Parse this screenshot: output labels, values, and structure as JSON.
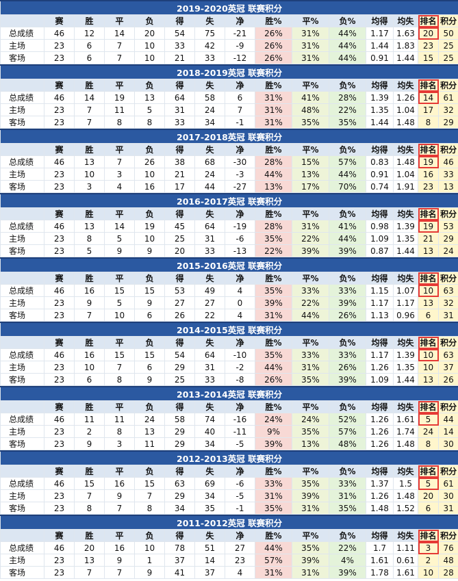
{
  "columns": [
    "",
    "赛",
    "胜",
    "平",
    "负",
    "得",
    "失",
    "净",
    "胜%",
    "平%",
    "负%",
    "均得",
    "均失",
    "排名",
    "积分"
  ],
  "seasons": [
    {
      "title": "2019-2020英冠 联赛积分",
      "rows": [
        {
          "label": "总成绩",
          "values": [
            "46",
            "12",
            "14",
            "20",
            "54",
            "75",
            "-21",
            "26%",
            "31%",
            "44%",
            "1.17",
            "1.63",
            "20",
            "50"
          ]
        },
        {
          "label": "主场",
          "values": [
            "23",
            "6",
            "7",
            "10",
            "33",
            "42",
            "-9",
            "26%",
            "31%",
            "44%",
            "1.44",
            "1.83",
            "23",
            "25"
          ]
        },
        {
          "label": "客场",
          "values": [
            "23",
            "6",
            "7",
            "10",
            "21",
            "33",
            "-12",
            "26%",
            "31%",
            "44%",
            "0.91",
            "1.44",
            "15",
            "25"
          ]
        }
      ]
    },
    {
      "title": "2018-2019英冠 联赛积分",
      "rows": [
        {
          "label": "总成绩",
          "values": [
            "46",
            "14",
            "19",
            "13",
            "64",
            "58",
            "6",
            "31%",
            "41%",
            "28%",
            "1.39",
            "1.26",
            "14",
            "61"
          ]
        },
        {
          "label": "主场",
          "values": [
            "23",
            "7",
            "11",
            "5",
            "31",
            "24",
            "7",
            "31%",
            "48%",
            "22%",
            "1.35",
            "1.04",
            "17",
            "32"
          ]
        },
        {
          "label": "客场",
          "values": [
            "23",
            "7",
            "8",
            "8",
            "33",
            "34",
            "-1",
            "31%",
            "35%",
            "35%",
            "1.44",
            "1.48",
            "8",
            "29"
          ]
        }
      ]
    },
    {
      "title": "2017-2018英冠 联赛积分",
      "rows": [
        {
          "label": "总成绩",
          "values": [
            "46",
            "13",
            "7",
            "26",
            "38",
            "68",
            "-30",
            "28%",
            "15%",
            "57%",
            "0.83",
            "1.48",
            "19",
            "46"
          ]
        },
        {
          "label": "主场",
          "values": [
            "23",
            "10",
            "3",
            "10",
            "21",
            "24",
            "-3",
            "44%",
            "13%",
            "44%",
            "0.91",
            "1.04",
            "16",
            "33"
          ]
        },
        {
          "label": "客场",
          "values": [
            "23",
            "3",
            "4",
            "16",
            "17",
            "44",
            "-27",
            "13%",
            "17%",
            "70%",
            "0.74",
            "1.91",
            "23",
            "13"
          ]
        }
      ]
    },
    {
      "title": "2016-2017英冠 联赛积分",
      "rows": [
        {
          "label": "总成绩",
          "values": [
            "46",
            "13",
            "14",
            "19",
            "45",
            "64",
            "-19",
            "28%",
            "31%",
            "41%",
            "0.98",
            "1.39",
            "19",
            "53"
          ]
        },
        {
          "label": "主场",
          "values": [
            "23",
            "8",
            "5",
            "10",
            "25",
            "31",
            "-6",
            "35%",
            "22%",
            "44%",
            "1.09",
            "1.35",
            "21",
            "29"
          ]
        },
        {
          "label": "客场",
          "values": [
            "23",
            "5",
            "9",
            "9",
            "20",
            "33",
            "-13",
            "22%",
            "39%",
            "39%",
            "0.87",
            "1.44",
            "13",
            "24"
          ]
        }
      ]
    },
    {
      "title": "2015-2016英冠 联赛积分",
      "rows": [
        {
          "label": "总成绩",
          "values": [
            "46",
            "16",
            "15",
            "15",
            "53",
            "49",
            "4",
            "35%",
            "33%",
            "33%",
            "1.15",
            "1.07",
            "10",
            "63"
          ]
        },
        {
          "label": "主场",
          "values": [
            "23",
            "9",
            "5",
            "9",
            "27",
            "27",
            "0",
            "39%",
            "22%",
            "39%",
            "1.17",
            "1.17",
            "13",
            "32"
          ]
        },
        {
          "label": "客场",
          "values": [
            "23",
            "7",
            "10",
            "6",
            "26",
            "22",
            "4",
            "31%",
            "44%",
            "26%",
            "1.13",
            "0.96",
            "6",
            "31"
          ]
        }
      ]
    },
    {
      "title": "2014-2015英冠 联赛积分",
      "rows": [
        {
          "label": "总成绩",
          "values": [
            "46",
            "16",
            "15",
            "15",
            "54",
            "64",
            "-10",
            "35%",
            "33%",
            "33%",
            "1.17",
            "1.39",
            "10",
            "63"
          ]
        },
        {
          "label": "主场",
          "values": [
            "23",
            "10",
            "7",
            "6",
            "29",
            "31",
            "-2",
            "44%",
            "31%",
            "26%",
            "1.26",
            "1.35",
            "10",
            "37"
          ]
        },
        {
          "label": "客场",
          "values": [
            "23",
            "6",
            "8",
            "9",
            "25",
            "33",
            "-8",
            "26%",
            "35%",
            "39%",
            "1.09",
            "1.44",
            "13",
            "26"
          ]
        }
      ]
    },
    {
      "title": "2013-2014英冠 联赛积分",
      "rows": [
        {
          "label": "总成绩",
          "values": [
            "46",
            "11",
            "11",
            "24",
            "58",
            "74",
            "-16",
            "24%",
            "24%",
            "52%",
            "1.26",
            "1.61",
            "5",
            "44"
          ]
        },
        {
          "label": "主场",
          "values": [
            "23",
            "2",
            "8",
            "13",
            "29",
            "40",
            "-11",
            "9%",
            "35%",
            "57%",
            "1.26",
            "1.74",
            "24",
            "14"
          ]
        },
        {
          "label": "客场",
          "values": [
            "23",
            "9",
            "3",
            "11",
            "29",
            "34",
            "-5",
            "39%",
            "13%",
            "48%",
            "1.26",
            "1.48",
            "8",
            "30"
          ]
        }
      ]
    },
    {
      "title": "2012-2013英冠 联赛积分",
      "rows": [
        {
          "label": "总成绩",
          "values": [
            "46",
            "15",
            "16",
            "15",
            "63",
            "69",
            "-6",
            "33%",
            "35%",
            "33%",
            "1.37",
            "1.5",
            "5",
            "61"
          ]
        },
        {
          "label": "主场",
          "values": [
            "23",
            "7",
            "9",
            "7",
            "29",
            "34",
            "-5",
            "31%",
            "39%",
            "31%",
            "1.26",
            "1.48",
            "20",
            "30"
          ]
        },
        {
          "label": "客场",
          "values": [
            "23",
            "8",
            "7",
            "8",
            "34",
            "35",
            "-1",
            "35%",
            "31%",
            "35%",
            "1.48",
            "1.52",
            "6",
            "31"
          ]
        }
      ]
    },
    {
      "title": "2011-2012英冠 联赛积分",
      "rows": [
        {
          "label": "总成绩",
          "values": [
            "46",
            "20",
            "16",
            "10",
            "78",
            "51",
            "27",
            "44%",
            "35%",
            "22%",
            "1.7",
            "1.11",
            "3",
            "76"
          ]
        },
        {
          "label": "主场",
          "values": [
            "23",
            "13",
            "9",
            "1",
            "37",
            "14",
            "23",
            "57%",
            "39%",
            "4%",
            "1.61",
            "0.61",
            "2",
            "48"
          ]
        },
        {
          "label": "客场",
          "values": [
            "23",
            "7",
            "7",
            "9",
            "41",
            "37",
            "4",
            "31%",
            "31%",
            "39%",
            "1.78",
            "1.61",
            "10",
            "28"
          ]
        }
      ]
    }
  ],
  "colors": {
    "title_bar": "#2b59a1",
    "header_row": "#dce6f2",
    "win_pct": "#f8d9d5",
    "draw_pct": "#eef4d8",
    "loss_pct": "#e4f3da",
    "rank_pts": "#fff6cc",
    "highlight_border": "#e53935"
  }
}
